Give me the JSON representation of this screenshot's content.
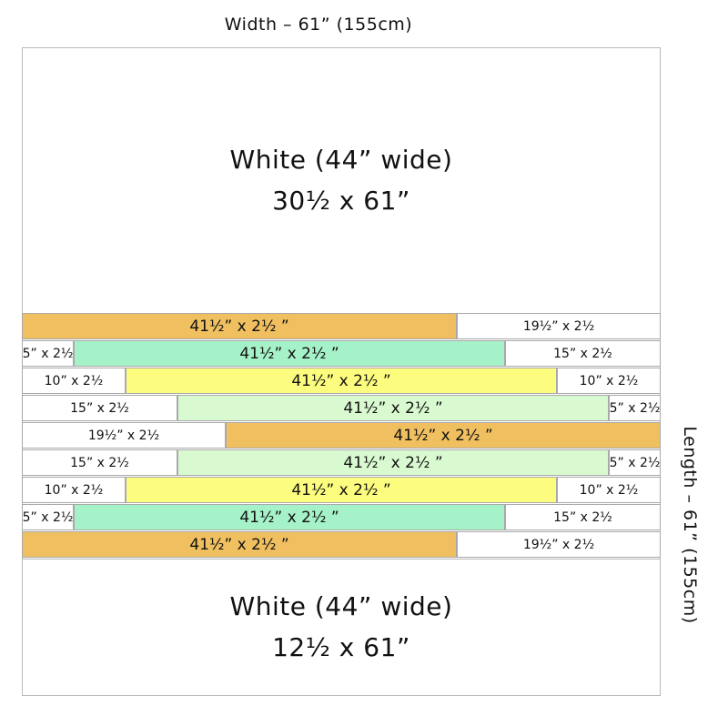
{
  "width_label": "Width – 61” (155cm)",
  "length_label": "Length – 61” (155cm)",
  "top_panel": {
    "title": "White (44” wide)",
    "size": "30½ x 61”"
  },
  "bottom_panel": {
    "title": "White (44” wide)",
    "size": "12½ x 61”"
  },
  "colors": {
    "white": "#ffffff",
    "orange": "#f0c060",
    "aqua": "#a6f2c8",
    "yellow": "#fcfc7e",
    "pale_green": "#d9fad0",
    "outline": "#a9a9a9"
  },
  "rows": [
    {
      "pieces": [
        {
          "label": "41½” x 2½ ”",
          "color": "orange",
          "inches": 41.5
        },
        {
          "label": "19½” x 2½",
          "color": "white",
          "inches": 19.5
        }
      ]
    },
    {
      "pieces": [
        {
          "label": "5” x 2½",
          "color": "white",
          "inches": 5
        },
        {
          "label": "41½” x 2½ ”",
          "color": "aqua",
          "inches": 41.5
        },
        {
          "label": "15” x 2½",
          "color": "white",
          "inches": 15
        }
      ]
    },
    {
      "pieces": [
        {
          "label": "10” x 2½",
          "color": "white",
          "inches": 10
        },
        {
          "label": "41½” x 2½ ”",
          "color": "yellow",
          "inches": 41.5
        },
        {
          "label": "10” x 2½",
          "color": "white",
          "inches": 10
        }
      ]
    },
    {
      "pieces": [
        {
          "label": "15” x 2½",
          "color": "white",
          "inches": 15
        },
        {
          "label": "41½” x 2½ ”",
          "color": "pale_green",
          "inches": 41.5
        },
        {
          "label": "5” x 2½",
          "color": "white",
          "inches": 5
        }
      ]
    },
    {
      "pieces": [
        {
          "label": "19½” x 2½",
          "color": "white",
          "inches": 19.5
        },
        {
          "label": "41½” x 2½ ”",
          "color": "orange",
          "inches": 41.5
        }
      ]
    },
    {
      "pieces": [
        {
          "label": "15” x 2½",
          "color": "white",
          "inches": 15
        },
        {
          "label": "41½” x 2½ ”",
          "color": "pale_green",
          "inches": 41.5
        },
        {
          "label": "5” x 2½",
          "color": "white",
          "inches": 5
        }
      ]
    },
    {
      "pieces": [
        {
          "label": "10” x 2½",
          "color": "white",
          "inches": 10
        },
        {
          "label": "41½” x 2½ ”",
          "color": "yellow",
          "inches": 41.5
        },
        {
          "label": "10” x 2½",
          "color": "white",
          "inches": 10
        }
      ]
    },
    {
      "pieces": [
        {
          "label": "5” x 2½",
          "color": "white",
          "inches": 5
        },
        {
          "label": "41½” x 2½ ”",
          "color": "aqua",
          "inches": 41.5
        },
        {
          "label": "15” x 2½",
          "color": "white",
          "inches": 15
        }
      ]
    },
    {
      "pieces": [
        {
          "label": "41½” x 2½ ”",
          "color": "orange",
          "inches": 41.5
        },
        {
          "label": "19½” x 2½",
          "color": "white",
          "inches": 19.5
        }
      ]
    }
  ]
}
